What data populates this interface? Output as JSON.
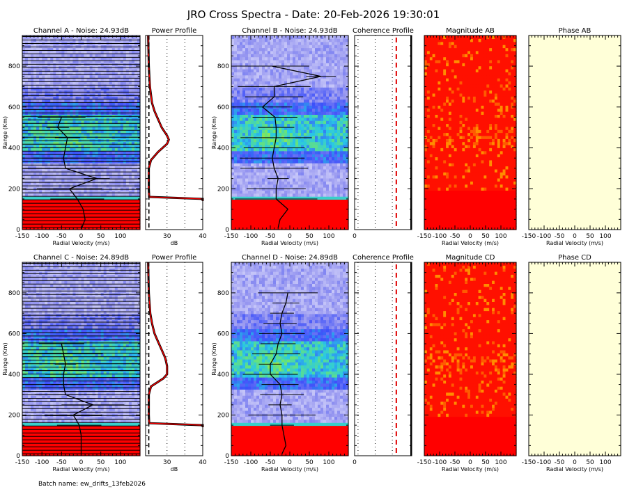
{
  "title": "JRO Cross Spectra - Date: 20-Feb-2026 19:30:01",
  "footer": "Batch name: ew_drifts_13feb2026",
  "colors": {
    "red_profile": "#ff0000",
    "phase_bg": "#ffffd8",
    "magnitude_bg": "#ff0000"
  },
  "chart_data": [
    {
      "type": "heatmap",
      "title": "Channel A - Noise: 24.93dB",
      "xlabel": "Radial Velocity (m/s)",
      "ylabel": "Range (Km)",
      "xlim": [
        -150,
        150
      ],
      "ylim": [
        0,
        950
      ],
      "xticks": [
        "-150",
        "-100",
        "-50",
        "0",
        "50",
        "100"
      ],
      "yticks": [
        "0",
        "200",
        "400",
        "600",
        "800"
      ],
      "doppler_profile": {
        "range": [
          0,
          50,
          100,
          150,
          200,
          250,
          300,
          350,
          400,
          450,
          500,
          550
        ],
        "velocity": [
          0,
          10,
          5,
          -10,
          -30,
          40,
          -40,
          -45,
          -40,
          -35,
          -60,
          -50
        ]
      }
    },
    {
      "type": "line",
      "title": "Power Profile",
      "xlabel": "dB",
      "xlim": [
        24,
        40
      ],
      "ylim": [
        0,
        950
      ],
      "xticks": [
        "30",
        "40"
      ],
      "series": [
        {
          "name": "power",
          "range": [
            140,
            150,
            160,
            200,
            300,
            340,
            380,
            420,
            440,
            460,
            500,
            540,
            580,
            620,
            700,
            800,
            950
          ],
          "db": [
            40,
            40,
            25,
            24.9,
            24.9,
            25.5,
            27.5,
            30,
            30.5,
            30,
            28.5,
            27.5,
            26.5,
            25.8,
            25.2,
            24.9,
            24.7
          ]
        },
        {
          "name": "noise",
          "db": 24.93
        }
      ]
    },
    {
      "type": "heatmap",
      "title": "Channel B - Noise: 24.93dB",
      "xlabel": "Radial Velocity (m/s)",
      "ylabel": "Range (Km)",
      "xlim": [
        -150,
        150
      ],
      "ylim": [
        0,
        950
      ],
      "xticks": [
        "-150",
        "-100",
        "-50",
        "0",
        "50",
        "100"
      ],
      "yticks": [
        "0",
        "200",
        "400",
        "600",
        "800"
      ],
      "doppler_profile": {
        "range": [
          10,
          50,
          100,
          150,
          200,
          250,
          300,
          350,
          400,
          450,
          500,
          550,
          600,
          650,
          700,
          750,
          800
        ],
        "velocity": [
          -30,
          -25,
          -5,
          -35,
          -35,
          -30,
          -40,
          -45,
          -40,
          -35,
          -35,
          -38,
          -70,
          -40,
          -40,
          80,
          -45
        ]
      }
    },
    {
      "type": "line",
      "title": "Coherence Profile",
      "xlim": [
        0,
        1
      ],
      "ylim": [
        0,
        950
      ],
      "xticks": [
        "0"
      ]
    },
    {
      "type": "heatmap",
      "title": "Magnitude AB",
      "xlabel": "Radial Velocity (m/s)",
      "xlim": [
        -150,
        150
      ],
      "ylim": [
        0,
        950
      ],
      "xticks": [
        "-150",
        "-100",
        "-50",
        "0",
        "50",
        "100"
      ]
    },
    {
      "type": "heatmap",
      "title": "Phase AB",
      "xlabel": "Radial Velocity (m/s)",
      "xlim": [
        -150,
        150
      ],
      "ylim": [
        0,
        950
      ],
      "xticks": [
        "-150",
        "-100",
        "-50",
        "0",
        "50",
        "100"
      ]
    },
    {
      "type": "heatmap",
      "title": "Channel C - Noise: 24.89dB",
      "xlabel": "Radial Velocity (m/s)",
      "ylabel": "Range (Km)",
      "xlim": [
        -150,
        150
      ],
      "ylim": [
        0,
        950
      ],
      "xticks": [
        "-150",
        "-100",
        "-50",
        "0",
        "50",
        "100"
      ],
      "yticks": [
        "0",
        "200",
        "400",
        "600",
        "800"
      ],
      "doppler_profile": {
        "range": [
          0,
          50,
          100,
          150,
          200,
          250,
          300,
          350,
          400,
          450,
          500,
          550
        ],
        "velocity": [
          0,
          0,
          0,
          -5,
          -20,
          30,
          -40,
          -45,
          -45,
          -40,
          -45,
          -50
        ]
      }
    },
    {
      "type": "line",
      "title": "Power Profile",
      "xlabel": "dB",
      "xlim": [
        24,
        40
      ],
      "ylim": [
        0,
        950
      ],
      "xticks": [
        "30",
        "40"
      ],
      "series": [
        {
          "name": "power",
          "range": [
            140,
            150,
            160,
            200,
            300,
            340,
            380,
            400,
            440,
            480,
            520,
            560,
            600,
            650,
            700,
            800,
            950
          ],
          "db": [
            40,
            40,
            25,
            24.9,
            24.9,
            25.5,
            29,
            30,
            30,
            29.5,
            28.5,
            27.5,
            26.5,
            25.8,
            25.3,
            24.9,
            24.7
          ]
        },
        {
          "name": "noise",
          "db": 24.89
        }
      ]
    },
    {
      "type": "heatmap",
      "title": "Channel D - Noise: 24.89dB",
      "xlabel": "Radial Velocity (m/s)",
      "ylabel": "Range (Km)",
      "xlim": [
        -150,
        150
      ],
      "ylim": [
        0,
        950
      ],
      "xticks": [
        "-150",
        "-100",
        "-50",
        "0",
        "50",
        "100"
      ],
      "yticks": [
        "0",
        "200",
        "400",
        "600",
        "800"
      ],
      "doppler_profile": {
        "range": [
          10,
          50,
          100,
          150,
          200,
          250,
          300,
          350,
          400,
          450,
          500,
          550,
          600,
          650,
          700,
          750,
          800
        ],
        "velocity": [
          -20,
          -10,
          -15,
          -20,
          -20,
          -25,
          -20,
          -25,
          -50,
          -50,
          -35,
          -30,
          -20,
          -25,
          -20,
          -10,
          -5
        ]
      }
    },
    {
      "type": "line",
      "title": "Coherence Profile",
      "xlim": [
        0,
        1
      ],
      "ylim": [
        0,
        950
      ],
      "xticks": [
        "0"
      ]
    },
    {
      "type": "heatmap",
      "title": "Magnitude CD",
      "xlabel": "Radial Velocity (m/s)",
      "xlim": [
        -150,
        150
      ],
      "ylim": [
        0,
        950
      ],
      "xticks": [
        "-150",
        "-100",
        "-50",
        "0",
        "50",
        "100"
      ]
    },
    {
      "type": "heatmap",
      "title": "Phase CD",
      "xlabel": "Radial Velocity (m/s)",
      "xlim": [
        -150,
        150
      ],
      "ylim": [
        0,
        950
      ],
      "xticks": [
        "-150",
        "-100",
        "-50",
        "0",
        "50",
        "100"
      ]
    }
  ]
}
